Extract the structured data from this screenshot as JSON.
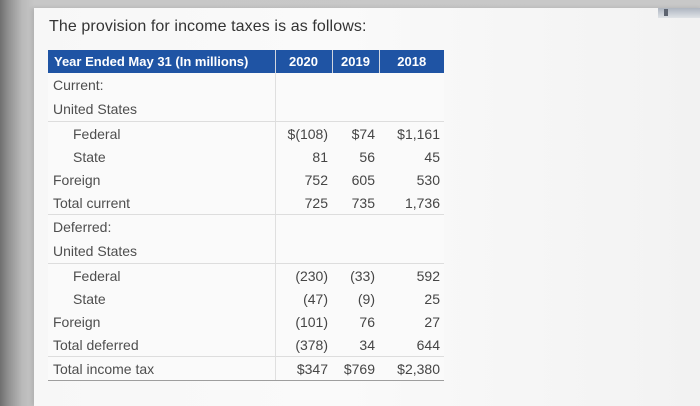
{
  "intro": "The provision for income taxes is as follows:",
  "table": {
    "header": {
      "label": "Year Ended May 31 (In millions)",
      "year_2020": "2020",
      "year_2019": "2019",
      "year_2018": "2018"
    },
    "rows": [
      {
        "label": "Current:",
        "v2020": "",
        "v2019": "",
        "v2018": ""
      },
      {
        "label": "United States",
        "v2020": "",
        "v2019": "",
        "v2018": ""
      },
      {
        "label": "Federal",
        "v2020": "$(108)",
        "v2019": "$74",
        "v2018": "$1,161"
      },
      {
        "label": "State",
        "v2020": "81",
        "v2019": "56",
        "v2018": "45"
      },
      {
        "label": "Foreign",
        "v2020": "752",
        "v2019": "605",
        "v2018": "530"
      },
      {
        "label": "Total current",
        "v2020": "725",
        "v2019": "735",
        "v2018": "1,736"
      },
      {
        "label": "Deferred:",
        "v2020": "",
        "v2019": "",
        "v2018": ""
      },
      {
        "label": "United States",
        "v2020": "",
        "v2019": "",
        "v2018": ""
      },
      {
        "label": "Federal",
        "v2020": "(230)",
        "v2019": "(33)",
        "v2018": "592"
      },
      {
        "label": "State",
        "v2020": "(47)",
        "v2019": "(9)",
        "v2018": "25"
      },
      {
        "label": "Foreign",
        "v2020": "(101)",
        "v2019": "76",
        "v2018": "27"
      },
      {
        "label": "Total deferred",
        "v2020": "(378)",
        "v2019": "34",
        "v2018": "644"
      },
      {
        "label": "Total income tax",
        "v2020": "$347",
        "v2019": "$769",
        "v2018": "$2,380"
      }
    ]
  },
  "colors": {
    "header_blue": "#1f54a4",
    "sheet_white": "#f7f7f7",
    "text_gray": "#4e4e4e"
  }
}
